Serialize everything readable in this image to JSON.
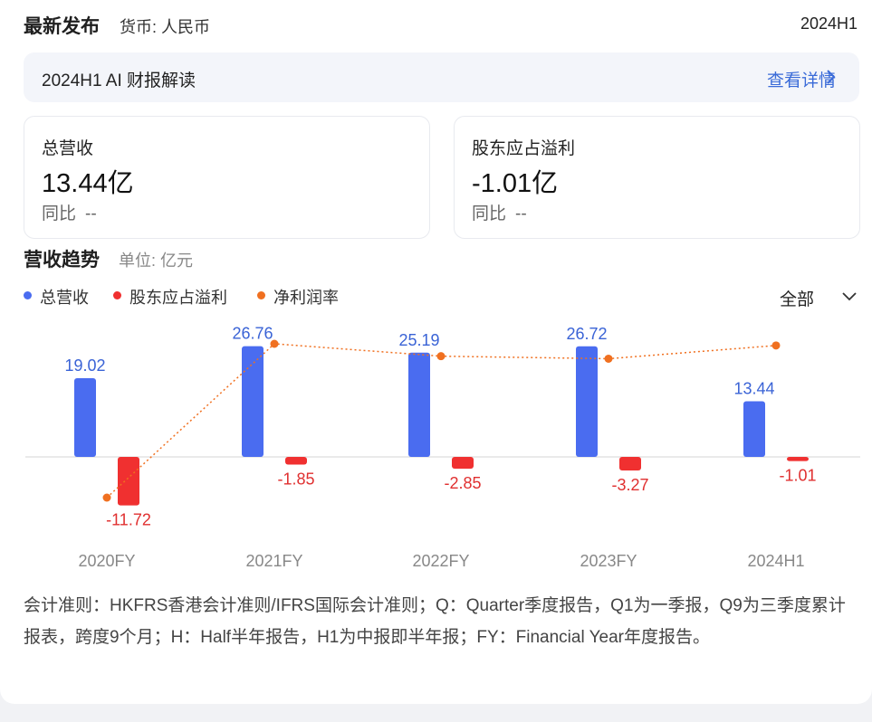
{
  "header": {
    "title": "最新发布",
    "currency": "货币: 人民币",
    "period": "2024H1"
  },
  "ai_bar": {
    "label": "2024H1 AI 财报解读",
    "link": "查看详情"
  },
  "metrics": [
    {
      "name": "总营收",
      "value": "13.44亿",
      "yoy_label": "同比",
      "yoy_value": "--"
    },
    {
      "name": "股东应占溢利",
      "value": "-1.01亿",
      "yoy_label": "同比",
      "yoy_value": "--"
    }
  ],
  "section": {
    "title": "营收趋势",
    "unit": "单位: 亿元"
  },
  "range_selector": {
    "value": "全部"
  },
  "colors": {
    "revenue": "#4a6cf0",
    "profit": "#f03030",
    "margin": "#f07020",
    "revenue_label": "#3a63d6",
    "profit_label": "#e03030"
  },
  "chart_data": {
    "type": "bar",
    "categories": [
      "2020FY",
      "2021FY",
      "2022FY",
      "2023FY",
      "2024H1"
    ],
    "series": [
      {
        "name": "总营收",
        "type": "bar",
        "values": [
          19.02,
          26.76,
          25.19,
          26.72,
          13.44
        ]
      },
      {
        "name": "股东应占溢利",
        "type": "bar",
        "values": [
          -11.72,
          -1.85,
          -2.85,
          -3.27,
          -1.01
        ]
      },
      {
        "name": "净利润率",
        "type": "line",
        "values": [
          -61.6,
          -6.9,
          -11.3,
          -12.2,
          -7.5
        ]
      }
    ],
    "legend_position": "top-left"
  },
  "footnote": "会计准则：HKFRS香港会计准则/IFRS国际会计准则；Q：Quarter季度报告，Q1为一季报，Q9为三季度累计报表，跨度9个月；H：Half半年报告，H1为中报即半年报；FY：Financial Year年度报告。"
}
